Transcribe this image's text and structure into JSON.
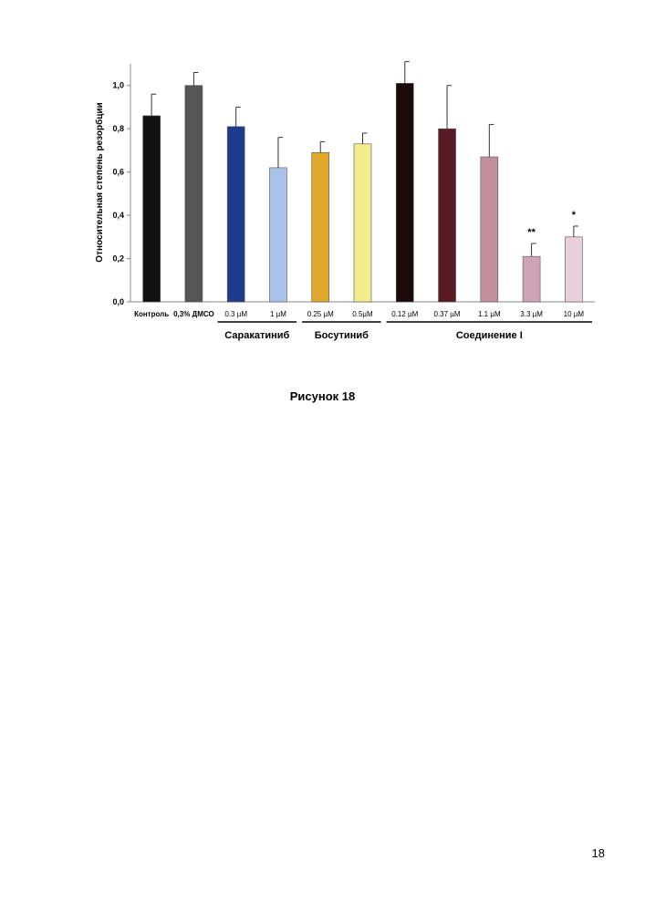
{
  "figure_caption": "Рисунок 18",
  "page_number": "18",
  "chart_data": {
    "type": "bar",
    "ylabel": "Относительная степень резорбции",
    "xlabel": "",
    "ylim": [
      0,
      1.1
    ],
    "yticks": [
      "0,0",
      "0,2",
      "0,4",
      "0,6",
      "0,8",
      "1,0"
    ],
    "ytick_values": [
      0,
      0.2,
      0.4,
      0.6,
      0.8,
      1.0
    ],
    "grid": false,
    "legend": "none",
    "categories": [
      "Контроль",
      "0,3% ДМСО",
      "0.3 µM",
      "1 µM",
      "0.25 µM",
      "0.5µM",
      "0.12 µM",
      "0.37 µM",
      "1.1 µM",
      "3.3 µM",
      "10 µM"
    ],
    "values": [
      0.86,
      1.0,
      0.81,
      0.62,
      0.69,
      0.73,
      1.01,
      0.8,
      0.67,
      0.21,
      0.3
    ],
    "errors": [
      0.1,
      0.06,
      0.09,
      0.14,
      0.05,
      0.05,
      0.1,
      0.2,
      0.15,
      0.06,
      0.05
    ],
    "colors": [
      "#111111",
      "#555555",
      "#1e3a8a",
      "#a9c2ec",
      "#e0a82a",
      "#f2ec8a",
      "#1a0a0a",
      "#5a1a24",
      "#c28e9e",
      "#cfa2b4",
      "#ead0da"
    ],
    "annotations": [
      "",
      "",
      "",
      "",
      "",
      "",
      "",
      "",
      "",
      "**",
      "*"
    ],
    "groups": [
      {
        "label": "Саракатиниб",
        "start": 2,
        "end": 3
      },
      {
        "label": "Босутиниб",
        "start": 4,
        "end": 5
      },
      {
        "label": "Соединение I",
        "start": 6,
        "end": 10
      }
    ]
  }
}
